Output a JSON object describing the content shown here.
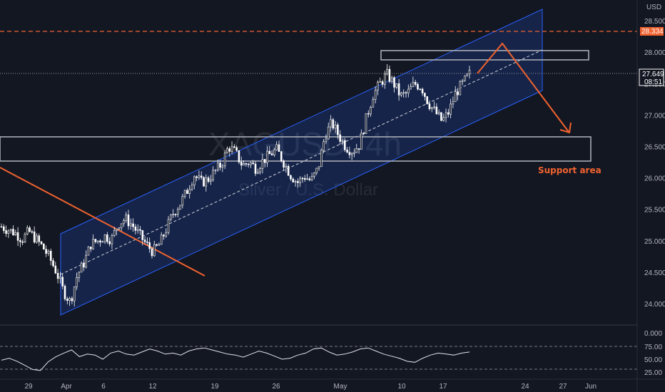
{
  "chart_data": {
    "type": "candlestick",
    "symbol_watermark": "XAGUSD, 4h",
    "subtitle_watermark": "Silver / U.S. Dollar",
    "currency": "USD",
    "y_ticks": [
      "28.500",
      "28.000",
      "27.500",
      "27.000",
      "26.500",
      "26.000",
      "25.500",
      "25.000",
      "24.500",
      "24.000"
    ],
    "x_ticks": [
      "29",
      "Apr",
      "6",
      "12",
      "19",
      "26",
      "May",
      "10",
      "17",
      "24",
      "27",
      "Jun"
    ],
    "price_labels": {
      "resistance_level": "28.334",
      "last_price": "27.649",
      "countdown": "08:51"
    },
    "annotation": "Support area",
    "rsi": {
      "ticks": [
        "0.000",
        "75.00",
        "50.00",
        "25.00"
      ],
      "levels": [
        70,
        30
      ]
    },
    "price_path": [
      [
        25.2,
        25.25
      ],
      [
        25.15,
        25.2
      ],
      [
        25.05,
        25.2
      ],
      [
        24.9,
        25.15
      ],
      [
        25.0,
        25.3
      ],
      [
        24.85,
        25.2
      ],
      [
        24.7,
        25.1
      ],
      [
        24.55,
        24.9
      ],
      [
        24.3,
        24.7
      ],
      [
        24.0,
        24.4
      ],
      [
        23.85,
        24.2
      ],
      [
        24.3,
        24.6
      ],
      [
        24.5,
        24.8
      ],
      [
        24.9,
        25.0
      ],
      [
        24.95,
        25.05
      ],
      [
        25.0,
        25.15
      ],
      [
        24.85,
        25.2
      ],
      [
        25.2,
        25.35
      ],
      [
        25.25,
        25.45
      ],
      [
        25.1,
        25.4
      ],
      [
        25.0,
        25.2
      ],
      [
        24.85,
        25.05
      ],
      [
        24.7,
        24.95
      ],
      [
        24.8,
        25.1
      ],
      [
        25.15,
        25.25
      ],
      [
        25.4,
        25.5
      ],
      [
        25.55,
        25.65
      ],
      [
        25.75,
        25.85
      ],
      [
        26.0,
        26.1
      ],
      [
        25.8,
        26.05
      ],
      [
        25.9,
        26.05
      ],
      [
        26.05,
        26.15
      ],
      [
        26.15,
        26.3
      ],
      [
        26.45,
        26.55
      ],
      [
        26.3,
        26.5
      ],
      [
        26.1,
        26.3
      ],
      [
        26.2,
        26.3
      ],
      [
        26.05,
        26.25
      ],
      [
        26.2,
        26.35
      ],
      [
        26.3,
        26.45
      ],
      [
        26.4,
        26.5
      ],
      [
        26.1,
        26.4
      ],
      [
        25.9,
        26.2
      ],
      [
        25.85,
        26.0
      ],
      [
        25.95,
        26.1
      ],
      [
        25.85,
        26.05
      ],
      [
        26.1,
        26.2
      ],
      [
        26.6,
        26.75
      ],
      [
        26.8,
        26.95
      ],
      [
        26.55,
        26.8
      ],
      [
        26.4,
        26.6
      ],
      [
        26.35,
        26.5
      ],
      [
        26.45,
        26.6
      ],
      [
        26.9,
        27.0
      ],
      [
        27.25,
        27.4
      ],
      [
        27.4,
        27.6
      ],
      [
        27.55,
        27.75
      ],
      [
        27.4,
        27.6
      ],
      [
        27.15,
        27.45
      ],
      [
        27.3,
        27.4
      ],
      [
        27.45,
        27.55
      ],
      [
        27.35,
        27.55
      ],
      [
        27.1,
        27.3
      ],
      [
        26.95,
        27.15
      ],
      [
        26.8,
        27.0
      ],
      [
        26.95,
        27.15
      ],
      [
        27.3,
        27.4
      ],
      [
        27.45,
        27.55
      ],
      [
        27.649,
        27.65
      ]
    ],
    "rsi_path": [
      48,
      52,
      46,
      38,
      30,
      28,
      45,
      55,
      62,
      68,
      55,
      60,
      58,
      50,
      62,
      66,
      60,
      58,
      64,
      70,
      66,
      60,
      62,
      58,
      66,
      70,
      72,
      68,
      64,
      60,
      58,
      54,
      60,
      66,
      62,
      56,
      50,
      52,
      58,
      62,
      70,
      72,
      64,
      58,
      60,
      64,
      70,
      72,
      66,
      60,
      56,
      52,
      46,
      44,
      52,
      58,
      62,
      60,
      58,
      62,
      64
    ]
  }
}
